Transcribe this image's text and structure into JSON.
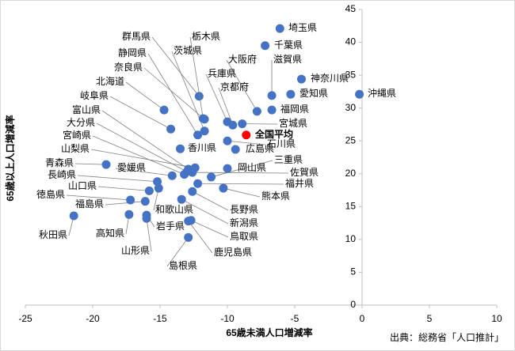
{
  "chart_data": {
    "type": "scatter",
    "x_label": "65歳未満人口増減率",
    "y_label": "65歳以上人口増減率",
    "source": "出典：総務省「人口推計」",
    "xlim": [
      -25,
      10
    ],
    "ylim": [
      0,
      45
    ],
    "xticks": [
      -25,
      -20,
      -15,
      -10,
      -5,
      0,
      5,
      10
    ],
    "yticks": [
      0,
      5,
      10,
      15,
      20,
      25,
      30,
      35,
      40,
      45
    ],
    "color": "#4472c4",
    "highlight_color": "#ff0000",
    "negative_tick_color": "#ff0000",
    "points": [
      {
        "label": "埼玉県",
        "x": -6.1,
        "y": 42.1
      },
      {
        "label": "千葉県",
        "x": -7.2,
        "y": 39.5
      },
      {
        "label": "滋賀県",
        "x": -6.7,
        "y": 31.9
      },
      {
        "label": "大阪府",
        "x": -7.8,
        "y": 29.5
      },
      {
        "label": "兵庫県",
        "x": -10.0,
        "y": 27.9
      },
      {
        "label": "神奈川県",
        "x": -4.5,
        "y": 34.4
      },
      {
        "label": "京都府",
        "x": -9.6,
        "y": 27.4
      },
      {
        "label": "愛知県",
        "x": -5.3,
        "y": 32.1
      },
      {
        "label": "沖縄県",
        "x": -0.2,
        "y": 32.1
      },
      {
        "label": "福岡県",
        "x": -6.7,
        "y": 29.7
      },
      {
        "label": "宮城県",
        "x": -8.9,
        "y": 27.6
      },
      {
        "label": "石川県",
        "x": -10.0,
        "y": 25.0
      },
      {
        "label": "広島県",
        "x": -9.4,
        "y": 23.7
      },
      {
        "label": "三重県",
        "x": -11.2,
        "y": 19.5
      },
      {
        "label": "岡山県",
        "x": -10.0,
        "y": 20.8
      },
      {
        "label": "佐賀県",
        "x": -12.6,
        "y": 20.2
      },
      {
        "label": "福井県",
        "x": -12.2,
        "y": 18.5
      },
      {
        "label": "熊本県",
        "x": -10.3,
        "y": 17.8
      },
      {
        "label": "長野県",
        "x": -12.6,
        "y": 17.3
      },
      {
        "label": "新潟県",
        "x": -13.4,
        "y": 16.1
      },
      {
        "label": "鳥取県",
        "x": -12.7,
        "y": 12.9
      },
      {
        "label": "鹿児島県",
        "x": -12.9,
        "y": 12.8
      },
      {
        "label": "島根県",
        "x": -12.9,
        "y": 10.3
      },
      {
        "label": "岩手県",
        "x": -16.0,
        "y": 13.7
      },
      {
        "label": "和歌山県",
        "x": -15.1,
        "y": 17.8
      },
      {
        "label": "山形県",
        "x": -16.0,
        "y": 13.2
      },
      {
        "label": "高知県",
        "x": -17.3,
        "y": 13.8
      },
      {
        "label": "秋田県",
        "x": -21.4,
        "y": 13.6
      },
      {
        "label": "福島県",
        "x": -16.1,
        "y": 15.8
      },
      {
        "label": "徳島県",
        "x": -17.2,
        "y": 16.0
      },
      {
        "label": "山口県",
        "x": -15.8,
        "y": 17.4
      },
      {
        "label": "長崎県",
        "x": -15.2,
        "y": 18.8
      },
      {
        "label": "青森県",
        "x": -19.0,
        "y": 21.4
      },
      {
        "label": "愛媛県",
        "x": -14.1,
        "y": 19.7
      },
      {
        "label": "香川県",
        "x": -13.5,
        "y": 23.8
      },
      {
        "label": "山梨県",
        "x": -12.4,
        "y": 20.9
      },
      {
        "label": "宮崎県",
        "x": -13.2,
        "y": 19.9
      },
      {
        "label": "大分県",
        "x": -13.0,
        "y": 20.3
      },
      {
        "label": "富山県",
        "x": -12.9,
        "y": 20.7
      },
      {
        "label": "岐阜県",
        "x": -14.2,
        "y": 26.8
      },
      {
        "label": "北海道",
        "x": -14.7,
        "y": 29.7
      },
      {
        "label": "奈良県",
        "x": -11.7,
        "y": 28.3
      },
      {
        "label": "静岡県",
        "x": -12.2,
        "y": 25.9
      },
      {
        "label": "茨城県",
        "x": -11.7,
        "y": 26.5
      },
      {
        "label": "群馬県",
        "x": -12.1,
        "y": 31.8
      },
      {
        "label": "栃木県",
        "x": -11.8,
        "y": 28.4
      }
    ],
    "highlight": {
      "label": "全国平均",
      "x": -8.6,
      "y": 25.9
    }
  }
}
